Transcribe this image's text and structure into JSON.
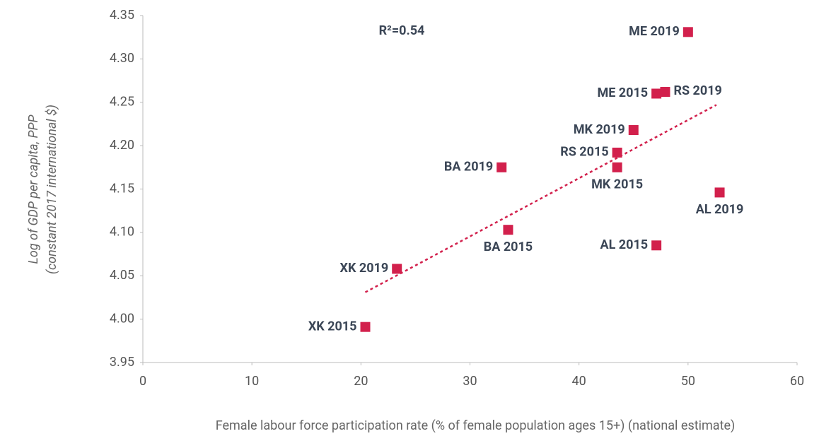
{
  "chart_data": {
    "type": "scatter",
    "xlabel": "Female labour force participation rate (% of female population ages 15+) (national estimate)",
    "ylabel": [
      "Log of GDP per capita, PPP",
      "(constant 2017 international $)"
    ],
    "annotation": "R²=0.54",
    "color": "#d2204c",
    "trendline_color": "#d2204c",
    "point_labels": [
      "ME 2019",
      "ME 2015",
      "RS 2019",
      "MK 2019",
      "RS 2015",
      "MK 2015",
      "BA 2019",
      "AL 2019",
      "BA 2015",
      "AL 2015",
      "XK 2019",
      "XK 2015"
    ],
    "x": [
      50.0,
      47.1,
      47.9,
      45.0,
      43.5,
      43.5,
      32.9,
      52.9,
      33.5,
      47.1,
      23.3,
      20.4
    ],
    "values": [
      4.331,
      4.26,
      4.262,
      4.218,
      4.192,
      4.175,
      4.175,
      4.146,
      4.103,
      4.085,
      4.058,
      3.991
    ],
    "trendline": {
      "x": [
        20.4,
        52.6
      ],
      "y": [
        4.031,
        4.247
      ]
    },
    "xlim": [
      0,
      60
    ],
    "xticks": [
      0,
      10,
      20,
      30,
      40,
      50,
      60
    ],
    "ylim": [
      3.95,
      4.35
    ],
    "yticks": [
      3.95,
      {
        "value": 4,
        "label": "4.00"
      },
      4.05,
      {
        "value": 4.1,
        "label": "4.10"
      },
      4.15,
      {
        "value": 4.2,
        "label": "4.20"
      },
      4.25,
      {
        "value": 4.3,
        "label": "4.30"
      },
      4.35
    ],
    "grid": false
  }
}
